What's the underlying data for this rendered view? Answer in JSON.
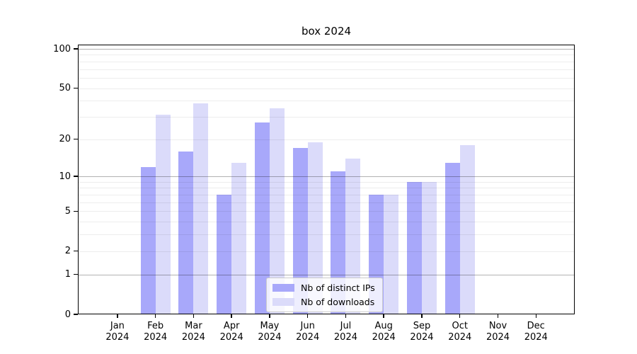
{
  "title": "box 2024",
  "chart_data": {
    "type": "bar",
    "title": "box 2024",
    "categories": [
      "Jan 2024",
      "Feb 2024",
      "Mar 2024",
      "Apr 2024",
      "May 2024",
      "Jun 2024",
      "Jul 2024",
      "Aug 2024",
      "Sep 2024",
      "Oct 2024",
      "Nov 2024",
      "Dec 2024"
    ],
    "series": [
      {
        "name": "Nb of distinct IPs",
        "color": "#a8a8fa",
        "values": [
          0,
          12,
          16,
          7,
          27,
          17,
          11,
          7,
          9,
          13,
          0,
          0
        ]
      },
      {
        "name": "Nb of downloads",
        "color": "#dbdbfa",
        "values": [
          0,
          31,
          38,
          13,
          35,
          19,
          14,
          7,
          9,
          18,
          0,
          0
        ]
      }
    ],
    "yscale": "log1p",
    "ylim": [
      0,
      100
    ],
    "ytick_labels": [
      0,
      1,
      2,
      5,
      10,
      20,
      50,
      100
    ],
    "major_grid_values": [
      1,
      10,
      100
    ],
    "minor_grid_values": [
      2,
      3,
      4,
      5,
      6,
      7,
      8,
      9,
      20,
      30,
      40,
      50,
      60,
      70,
      80,
      90
    ],
    "grid": true,
    "legend_position": "lower center"
  },
  "legend": {
    "items": [
      {
        "label": "Nb of distinct IPs",
        "swatch": "dark-lavender"
      },
      {
        "label": "Nb of downloads",
        "swatch": "light-lavender"
      }
    ]
  },
  "colors": {
    "bar_dark": "#a8a8fa",
    "bar_light": "#dbdbfa",
    "grid_major": "#b5b5b5",
    "grid_minor": "#ebebeb",
    "axis": "#000000",
    "legend_border": "#cccccc"
  }
}
